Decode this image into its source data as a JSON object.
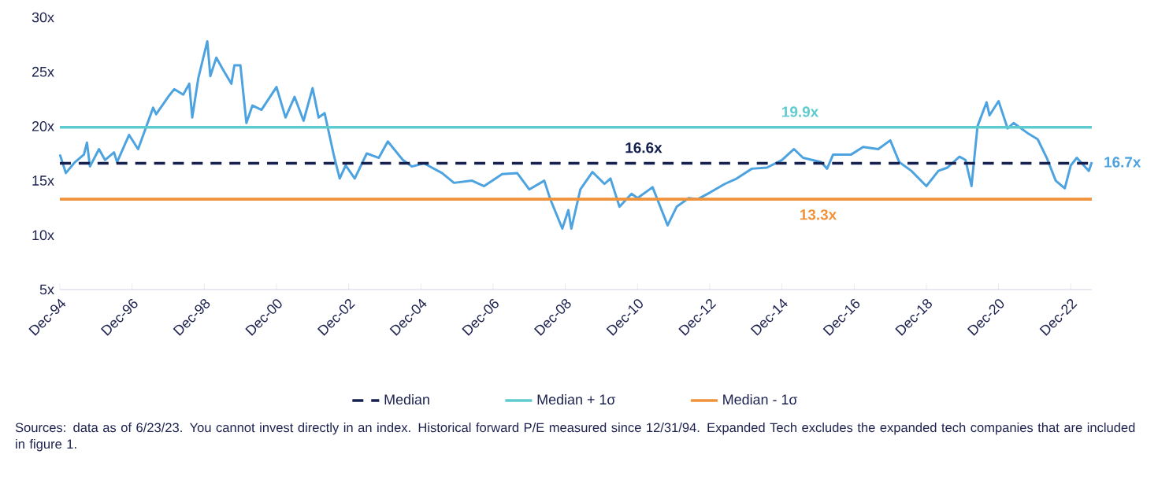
{
  "chart_data": {
    "type": "line",
    "xlim": [
      "1994-12",
      "2023-07"
    ],
    "ylim": [
      5,
      30
    ],
    "xticks": [
      {
        "value": "1994-12",
        "label": "Dec-94"
      },
      {
        "value": "1996-12",
        "label": "Dec-96"
      },
      {
        "value": "1998-12",
        "label": "Dec-98"
      },
      {
        "value": "2000-12",
        "label": "Dec-00"
      },
      {
        "value": "2002-12",
        "label": "Dec-02"
      },
      {
        "value": "2004-12",
        "label": "Dec-04"
      },
      {
        "value": "2006-12",
        "label": "Dec-06"
      },
      {
        "value": "2008-12",
        "label": "Dec-08"
      },
      {
        "value": "2010-12",
        "label": "Dec-10"
      },
      {
        "value": "2012-12",
        "label": "Dec-12"
      },
      {
        "value": "2014-12",
        "label": "Dec-14"
      },
      {
        "value": "2016-12",
        "label": "Dec-16"
      },
      {
        "value": "2018-12",
        "label": "Dec-18"
      },
      {
        "value": "2020-12",
        "label": "Dec-20"
      },
      {
        "value": "2022-12",
        "label": "Dec-22"
      }
    ],
    "yticks": [
      {
        "value": 5,
        "label": "5x"
      },
      {
        "value": 10,
        "label": "10x"
      },
      {
        "value": 15,
        "label": "15x"
      },
      {
        "value": 20,
        "label": "20x"
      },
      {
        "value": 25,
        "label": "25x"
      },
      {
        "value": 30,
        "label": "30x"
      }
    ],
    "grid": false,
    "legend": "bottom",
    "marker": "none",
    "series": [
      {
        "color": "#4da3e0",
        "line_style": "solid",
        "x": [
          "1994-12",
          "1995-02",
          "1995-05",
          "1995-08",
          "1995-09",
          "1995-10",
          "1996-01",
          "1996-03",
          "1996-06",
          "1996-07",
          "1996-11",
          "1997-02",
          "1997-07",
          "1997-08",
          "1997-12",
          "1998-02",
          "1998-05",
          "1998-07",
          "1998-08",
          "1998-10",
          "1999-01",
          "1999-02",
          "1999-04",
          "1999-06",
          "1999-09",
          "1999-10",
          "1999-12",
          "2000-02",
          "2000-04",
          "2000-07",
          "2000-12",
          "2001-03",
          "2001-06",
          "2001-09",
          "2001-12",
          "2002-02",
          "2002-04",
          "2002-07",
          "2002-09",
          "2002-11",
          "2003-02",
          "2003-06",
          "2003-10",
          "2004-01",
          "2004-06",
          "2004-09",
          "2005-01",
          "2005-07",
          "2005-11",
          "2006-05",
          "2006-09",
          "2007-03",
          "2007-08",
          "2007-12",
          "2008-05",
          "2008-07",
          "2008-11",
          "2009-01",
          "2009-02",
          "2009-05",
          "2009-09",
          "2010-01",
          "2010-03",
          "2010-06",
          "2010-10",
          "2010-12",
          "2011-05",
          "2011-10",
          "2012-01",
          "2012-05",
          "2012-08",
          "2012-12",
          "2013-05",
          "2013-09",
          "2014-02",
          "2014-07",
          "2014-12",
          "2015-04",
          "2015-07",
          "2016-01",
          "2016-03",
          "2016-05",
          "2016-11",
          "2017-03",
          "2017-08",
          "2017-12",
          "2018-03",
          "2018-07",
          "2018-12",
          "2019-04",
          "2019-07",
          "2019-11",
          "2020-01",
          "2020-03",
          "2020-05",
          "2020-08",
          "2020-09",
          "2020-12",
          "2021-03",
          "2021-05",
          "2021-10",
          "2022-01",
          "2022-04",
          "2022-07",
          "2022-10",
          "2022-12",
          "2023-02",
          "2023-06",
          "2023-07"
        ],
        "values": [
          17.4,
          15.7,
          16.7,
          17.4,
          18.5,
          16.3,
          17.9,
          16.9,
          17.6,
          16.7,
          19.2,
          17.9,
          21.7,
          21.1,
          22.7,
          23.4,
          22.9,
          23.9,
          20.8,
          24.4,
          27.8,
          24.6,
          26.3,
          25.3,
          23.9,
          25.6,
          25.6,
          20.3,
          21.9,
          21.5,
          23.6,
          20.8,
          22.7,
          20.5,
          23.5,
          20.8,
          21.2,
          17.4,
          15.2,
          16.4,
          15.2,
          17.5,
          17.1,
          18.6,
          16.9,
          16.3,
          16.6,
          15.7,
          14.8,
          15.0,
          14.5,
          15.6,
          15.7,
          14.2,
          15.0,
          13.3,
          10.6,
          12.3,
          10.6,
          14.2,
          15.8,
          14.7,
          15.2,
          12.6,
          13.8,
          13.4,
          14.4,
          10.9,
          12.6,
          13.4,
          13.3,
          13.9,
          14.7,
          15.2,
          16.1,
          16.2,
          16.9,
          17.9,
          17.1,
          16.7,
          16.1,
          17.4,
          17.4,
          18.1,
          17.9,
          18.7,
          16.7,
          15.9,
          14.5,
          15.9,
          16.2,
          17.2,
          16.9,
          14.5,
          20.0,
          22.2,
          21.0,
          22.3,
          19.8,
          20.3,
          19.3,
          18.8,
          17.1,
          15.0,
          14.3,
          16.4,
          17.1,
          15.9,
          16.7
        ]
      },
      {
        "name": "Median",
        "color": "#16204f",
        "line_style": "dashed",
        "x": [
          "1994-12",
          "2023-07"
        ],
        "values": [
          16.6,
          16.6
        ]
      },
      {
        "name": "Median + 1σ",
        "color": "#5ecbcf",
        "line_style": "solid",
        "x": [
          "1994-12",
          "2023-07"
        ],
        "values": [
          19.9,
          19.9
        ]
      },
      {
        "name": "Median - 1σ",
        "color": "#f0923a",
        "line_style": "solid",
        "x": [
          "1994-12",
          "2023-07"
        ],
        "values": [
          13.3,
          13.3
        ]
      }
    ],
    "annotations": [
      {
        "text": "16.6x",
        "x": "2011-02",
        "y": 16.6
      },
      {
        "text": "19.9x",
        "x": "2015-06",
        "y": 19.9
      },
      {
        "text": "13.3x",
        "x": "2015-12",
        "y": 13.3
      },
      {
        "text": "16.7x",
        "x": "2023-07",
        "y": 16.7
      },
      "Sources: data as of 6/23/23. You cannot invest directly in an index. Historical forward P/E measured since 12/31/94. Expanded Tech  excludes the expanded tech companies that are included in figure 1."
    ]
  }
}
